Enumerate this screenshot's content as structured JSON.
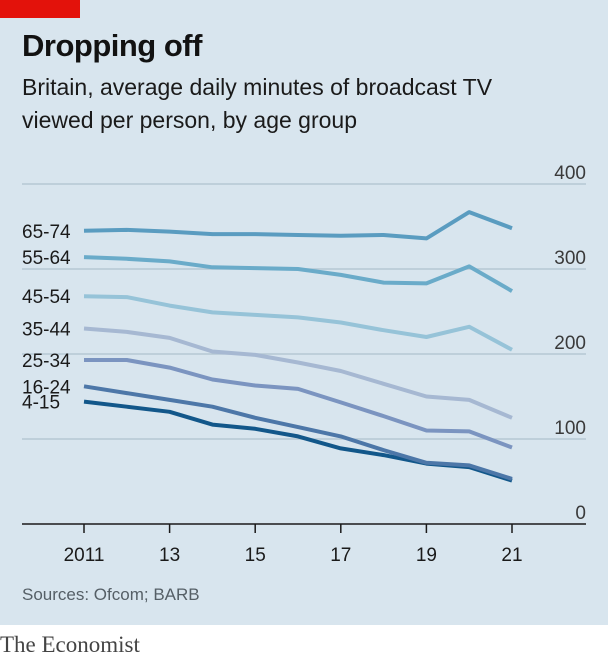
{
  "header": {
    "title": "Dropping off",
    "subtitle_line1": "Britain, average daily minutes of broadcast TV",
    "subtitle_line2": "viewed per person, by age group"
  },
  "footer": {
    "source": "Sources: Ofcom; BARB",
    "brand": "The Economist"
  },
  "colors": {
    "background": "#d8e5ee",
    "accent_red": "#e3120b",
    "gridline": "#b6c8d3"
  },
  "chart_data": {
    "type": "line",
    "x": [
      2011,
      2012,
      2013,
      2014,
      2015,
      2016,
      2017,
      2018,
      2019,
      2020,
      2021
    ],
    "xticks": [
      {
        "value": 2011,
        "label": "2011"
      },
      {
        "value": 2013,
        "label": "13"
      },
      {
        "value": 2015,
        "label": "15"
      },
      {
        "value": 2017,
        "label": "17"
      },
      {
        "value": 2019,
        "label": "19"
      },
      {
        "value": 2021,
        "label": "21"
      }
    ],
    "yticks": [
      {
        "value": 0,
        "label": "0"
      },
      {
        "value": 100,
        "label": "100"
      },
      {
        "value": 200,
        "label": "200"
      },
      {
        "value": 300,
        "label": "300"
      },
      {
        "value": 400,
        "label": "400"
      }
    ],
    "xlim": [
      2011,
      2021
    ],
    "ylim": [
      0,
      400
    ],
    "grid": true,
    "series": [
      {
        "name": "65-74",
        "color": "#5a9cc0",
        "values": [
          345,
          346,
          344,
          341,
          341,
          340,
          339,
          340,
          336,
          367,
          348
        ]
      },
      {
        "name": "55-64",
        "color": "#6aabc9",
        "values": [
          314,
          312,
          309,
          302,
          301,
          300,
          293,
          284,
          283,
          303,
          274
        ]
      },
      {
        "name": "45-54",
        "color": "#96c3d8",
        "values": [
          268,
          267,
          257,
          249,
          246,
          243,
          237,
          228,
          220,
          232,
          205
        ]
      },
      {
        "name": "35-44",
        "color": "#a6b8d2",
        "values": [
          230,
          226,
          219,
          203,
          199,
          190,
          180,
          165,
          150,
          146,
          125
        ]
      },
      {
        "name": "25-34",
        "color": "#7b94c0",
        "values": [
          193,
          193,
          184,
          170,
          163,
          159,
          143,
          127,
          110,
          109,
          90
        ]
      },
      {
        "name": "16-24",
        "color": "#4d77a8",
        "values": [
          162,
          154,
          146,
          138,
          125,
          114,
          103,
          87,
          72,
          69,
          53
        ]
      },
      {
        "name": "4-15",
        "color": "#12578a",
        "values": [
          144,
          138,
          132,
          117,
          112,
          103,
          89,
          81,
          71,
          67,
          51
        ]
      }
    ]
  }
}
